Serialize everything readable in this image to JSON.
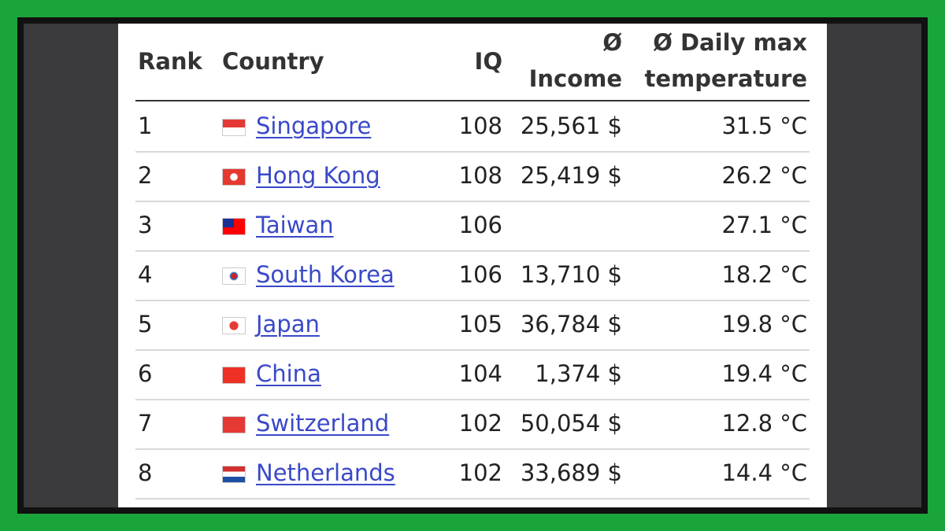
{
  "table": {
    "header": [
      "Rank",
      "Country",
      "IQ",
      [
        "Ø",
        "Income"
      ],
      [
        "Ø Daily max",
        "temperature"
      ]
    ],
    "rows": [
      [
        "1",
        "Singapore",
        "108",
        "25,561 $",
        "31.5 °C"
      ],
      [
        "2",
        "Hong Kong",
        "108",
        "25,419 $",
        "26.2 °C"
      ],
      [
        "3",
        "Taiwan",
        "106",
        null,
        "27.1 °C"
      ],
      [
        "4",
        "South Korea",
        "106",
        "13,710 $",
        "18.2 °C"
      ],
      [
        "5",
        "Japan",
        "105",
        "36,784 $",
        "19.8 °C"
      ],
      [
        "6",
        "China",
        "104",
        "1,374 $",
        "19.4 °C"
      ],
      [
        "7",
        "Switzerland",
        "102",
        "50,054 $",
        "12.8 °C"
      ],
      [
        "8",
        "Netherlands",
        "102",
        "33,689 $",
        "14.4 °C"
      ]
    ]
  }
}
